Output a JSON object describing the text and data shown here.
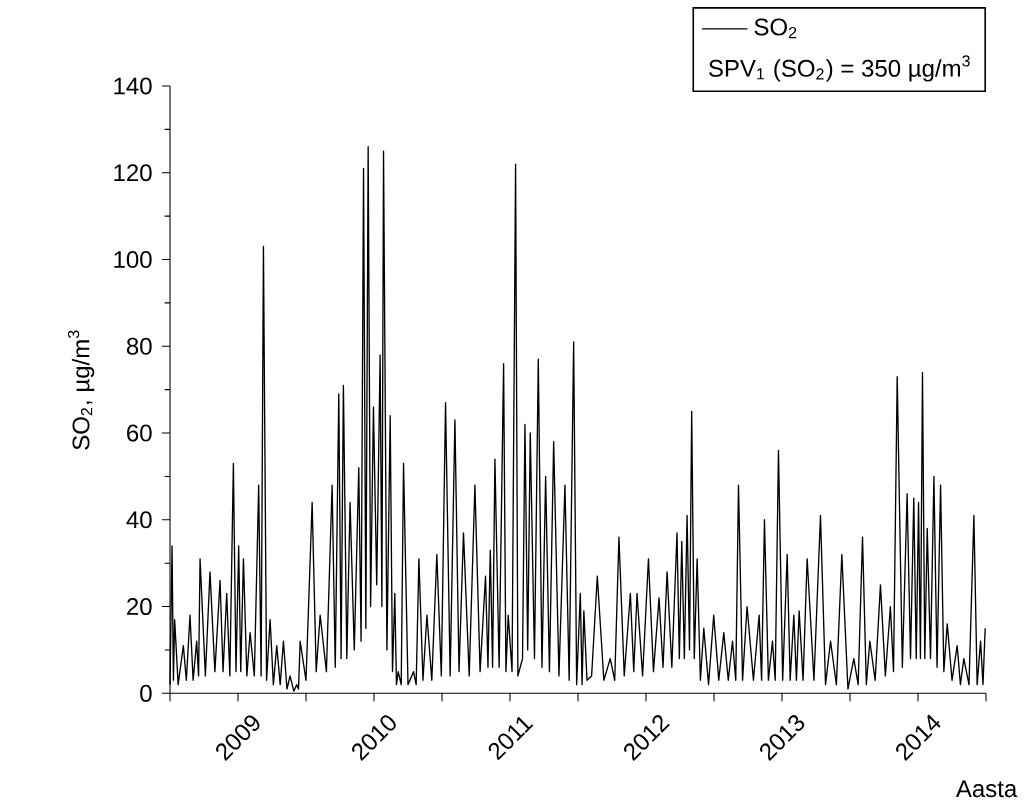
{
  "chart_data": {
    "type": "line",
    "xlabel": "Aasta",
    "ylabel": "SO$_{2}$, µg/m$^{3}$",
    "annotations": [
      "SPV$_{1}$ (SO$_{2}$) = 350 µg/m$^{3}$"
    ],
    "xlim": [
      2009,
      2015
    ],
    "ylim": [
      0,
      140
    ],
    "xticks": [
      {
        "value": 2009,
        "label": null
      },
      {
        "value": 2010,
        "label": null
      },
      {
        "value": 2011,
        "label": null
      },
      {
        "value": 2012,
        "label": null
      },
      {
        "value": 2013,
        "label": null
      },
      {
        "value": 2014,
        "label": null
      },
      {
        "value": 2015,
        "label": null
      },
      {
        "value": 2009.5,
        "label": "2009"
      },
      {
        "value": 2010.5,
        "label": "2010"
      },
      {
        "value": 2011.5,
        "label": "2011"
      },
      {
        "value": 2012.5,
        "label": "2012"
      },
      {
        "value": 2013.5,
        "label": "2013"
      },
      {
        "value": 2014.5,
        "label": "2014"
      }
    ],
    "yticks": [
      0,
      20,
      40,
      60,
      80,
      100,
      120,
      140
    ],
    "grid": false,
    "legend": "top right",
    "marker": "none",
    "line_style": "solid",
    "series": [
      {
        "name": "SO$_{2}$",
        "color": "#000000",
        "x": [
          2009.0,
          2009.015,
          2009.025,
          2009.034,
          2009.06,
          2009.098,
          2009.12,
          2009.147,
          2009.17,
          2009.196,
          2009.21,
          2009.221,
          2009.26,
          2009.294,
          2009.33,
          2009.368,
          2009.39,
          2009.417,
          2009.44,
          2009.466,
          2009.485,
          2009.505,
          2009.52,
          2009.54,
          2009.565,
          2009.589,
          2009.62,
          2009.652,
          2009.67,
          2009.687,
          2009.71,
          2009.736,
          2009.76,
          2009.785,
          2009.81,
          2009.834,
          2009.86,
          2009.883,
          2009.91,
          2009.932,
          2009.945,
          2009.957,
          2010.0,
          2010.045,
          2010.075,
          2010.104,
          2010.15,
          2010.192,
          2010.215,
          2010.241,
          2010.258,
          2010.275,
          2010.3,
          2010.324,
          2010.355,
          2010.388,
          2010.405,
          2010.423,
          2010.44,
          2010.457,
          2010.475,
          2010.496,
          2010.52,
          2010.545,
          2010.558,
          2010.57,
          2010.595,
          2010.619,
          2010.636,
          2010.653,
          2010.665,
          2010.678,
          2010.7,
          2010.717,
          2010.75,
          2010.791,
          2010.81,
          2010.83,
          2010.86,
          2010.889,
          2010.925,
          2010.962,
          2010.995,
          2011.026,
          2011.06,
          2011.095,
          2011.125,
          2011.158,
          2011.2,
          2011.242,
          2011.28,
          2011.32,
          2011.338,
          2011.355,
          2011.372,
          2011.389,
          2011.42,
          2011.453,
          2011.47,
          2011.487,
          2011.515,
          2011.541,
          2011.558,
          2011.575,
          2011.592,
          2011.61,
          2011.63,
          2011.649,
          2011.68,
          2011.708,
          2011.735,
          2011.762,
          2011.79,
          2011.821,
          2011.86,
          2011.904,
          2011.935,
          2011.968,
          2011.99,
          2012.017,
          2012.03,
          2012.043,
          2012.066,
          2012.1,
          2012.142,
          2012.19,
          2012.237,
          2012.27,
          2012.301,
          2012.34,
          2012.385,
          2012.41,
          2012.434,
          2012.475,
          2012.518,
          2012.555,
          2012.596,
          2012.625,
          2012.655,
          2012.69,
          2012.728,
          2012.745,
          2012.763,
          2012.782,
          2012.802,
          2012.82,
          2012.836,
          2012.855,
          2012.876,
          2012.9,
          2012.925,
          2012.96,
          2012.998,
          2013.035,
          2013.072,
          2013.105,
          2013.136,
          2013.16,
          2013.18,
          2013.21,
          2013.243,
          2013.29,
          2013.332,
          2013.35,
          2013.371,
          2013.4,
          2013.43,
          2013.45,
          2013.474,
          2013.505,
          2013.538,
          2013.56,
          2013.587,
          2013.606,
          2013.626,
          2013.655,
          2013.685,
          2013.735,
          2013.783,
          2013.82,
          2013.857,
          2013.9,
          2013.94,
          2013.985,
          2014.028,
          2014.06,
          2014.092,
          2014.12,
          2014.146,
          2014.185,
          2014.224,
          2014.26,
          2014.297,
          2014.32,
          2014.347,
          2014.385,
          2014.42,
          2014.445,
          2014.469,
          2014.487,
          2014.504,
          2014.518,
          2014.533,
          2014.55,
          2014.568,
          2014.592,
          2014.617,
          2014.64,
          2014.666,
          2014.69,
          2014.715,
          2014.75,
          2014.788,
          2014.812,
          2014.837,
          2014.875,
          2014.911,
          2014.935,
          2014.96,
          2014.978,
          2014.994
        ],
        "values": [
          2,
          34,
          3,
          17,
          2,
          11,
          3,
          18,
          3,
          12,
          4,
          31,
          4,
          28,
          5,
          26,
          5,
          23,
          4,
          53,
          5,
          34,
          5,
          31,
          4,
          14,
          4,
          48,
          4,
          103,
          3,
          17,
          2,
          11,
          2,
          12,
          1,
          4,
          0.5,
          2,
          1,
          12,
          3,
          44,
          5,
          18,
          5,
          48,
          6,
          69,
          8,
          71,
          8,
          44,
          10,
          52,
          12,
          121,
          15,
          126,
          20,
          66,
          25,
          78,
          20,
          125,
          10,
          64,
          5,
          23,
          2,
          5,
          2,
          53,
          2,
          5,
          2,
          31,
          3,
          18,
          3,
          32,
          4,
          67,
          4,
          63,
          5,
          37,
          4,
          48,
          5,
          27,
          6,
          33,
          6,
          54,
          6,
          76,
          5,
          18,
          5,
          122,
          4,
          6,
          8,
          62,
          10,
          60,
          8,
          77,
          6,
          50,
          5,
          58,
          4,
          48,
          3,
          81,
          2,
          23,
          2,
          19,
          3,
          4,
          27,
          3,
          8,
          3,
          36,
          4,
          23,
          5,
          23,
          4,
          31,
          5,
          22,
          6,
          28,
          6,
          37,
          8,
          35,
          8,
          41,
          10,
          65,
          8,
          31,
          3,
          15,
          2,
          18,
          3,
          14,
          3,
          12,
          3,
          48,
          3,
          20,
          3,
          18,
          3,
          40,
          3,
          12,
          3,
          56,
          3,
          32,
          3,
          18,
          3,
          19,
          3,
          31,
          3,
          41,
          2,
          12,
          2,
          32,
          1,
          8,
          2,
          36,
          2,
          12,
          3,
          25,
          4,
          20,
          5,
          73,
          6,
          46,
          8,
          45,
          8,
          44,
          8,
          74,
          8,
          38,
          8,
          50,
          6,
          48,
          5,
          16,
          3,
          11,
          2,
          8,
          2,
          41,
          2,
          12,
          2,
          15
        ]
      }
    ]
  }
}
